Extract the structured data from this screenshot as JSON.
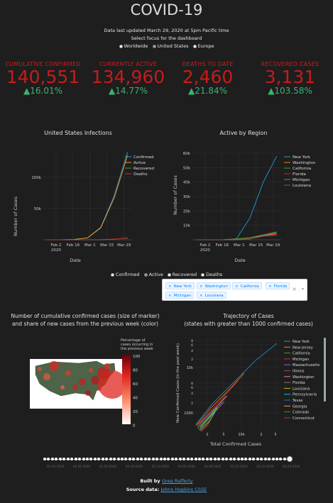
{
  "header": {
    "title": "COVID-19",
    "updated": "Data last updated March 29, 2020 at 5pm Pacific time",
    "focus_label": "Select focus for the dashboard",
    "focus_options": [
      "Worldwide",
      "United States",
      "Europe"
    ],
    "focus_selected": "United States"
  },
  "stats": [
    {
      "label": "CUMULATIVE CONFIRMED",
      "value": "140,551",
      "change": "▲16.01%"
    },
    {
      "label": "CURRENTLY ACTIVE",
      "value": "134,960",
      "change": "▲14.77%"
    },
    {
      "label": "DEATHS TO DATE",
      "value": "2,460",
      "change": "▲21.84%"
    },
    {
      "label": "RECOVERED CASES",
      "value": "3,131",
      "change": "▲103.58%"
    }
  ],
  "colors": {
    "confirmed": "#1f9bd4",
    "active": "#ff9a1f",
    "recovered": "#2ca02c",
    "deaths": "#d62728",
    "stat_red": "#c81a1a",
    "stat_green": "#3cb371"
  },
  "chart_data": [
    {
      "type": "line",
      "title": "United States Infections",
      "xlabel": "Date",
      "ylabel": "Number of Cases",
      "x_ticks": [
        "Feb 2\n2020",
        "Feb 16",
        "Mar 1",
        "Mar 15",
        "Mar 29"
      ],
      "y_ticks": [
        "50k",
        "100k"
      ],
      "ylim": [
        0,
        140551
      ],
      "legend": "top-right",
      "series": [
        {
          "name": "Confirmed",
          "values": [
            0,
            100,
            500,
            3000,
            20000,
            70000,
            140551
          ]
        },
        {
          "name": "Active",
          "values": [
            0,
            90,
            450,
            2800,
            19000,
            67000,
            134960
          ]
        },
        {
          "name": "Recovered",
          "values": [
            0,
            5,
            10,
            20,
            100,
            800,
            3131
          ]
        },
        {
          "name": "Deaths",
          "values": [
            0,
            0,
            5,
            60,
            300,
            1200,
            2460
          ]
        }
      ]
    },
    {
      "type": "line",
      "title": "Active by Region",
      "xlabel": "Date",
      "ylabel": "Number of Cases",
      "x_ticks": [
        "Feb 2\n2020",
        "Feb 16",
        "Mar 1",
        "Mar 15",
        "Mar 29"
      ],
      "y_ticks": [
        "10k",
        "20k",
        "30k",
        "40k",
        "50k",
        "60k"
      ],
      "ylim": [
        0,
        60000
      ],
      "legend": "top-right",
      "series": [
        {
          "name": "New York",
          "values": [
            0,
            0,
            0,
            700,
            15000,
            40000,
            58000
          ]
        },
        {
          "name": "Washington",
          "values": [
            0,
            0,
            10,
            600,
            1500,
            3000,
            4300
          ]
        },
        {
          "name": "California",
          "values": [
            0,
            5,
            20,
            400,
            1500,
            3500,
            5500
          ]
        },
        {
          "name": "Florida",
          "values": [
            0,
            0,
            2,
            100,
            700,
            2500,
            4000
          ]
        },
        {
          "name": "Michigan",
          "values": [
            0,
            0,
            0,
            50,
            600,
            3000,
            5000
          ]
        },
        {
          "name": "Louisiana",
          "values": [
            0,
            0,
            0,
            80,
            800,
            2500,
            3300
          ]
        }
      ]
    },
    {
      "type": "scatter",
      "title": "Trajectory of Cases",
      "subtitle": "(states with greater than 1000 confirmed cases)",
      "xlabel": "Total Confirmed Cases",
      "ylabel": "New Confirmed Cases (in the past week)",
      "log_scale": true,
      "legend": "right",
      "x_ticks": [
        "2",
        "5",
        "10k",
        "2",
        "5"
      ],
      "y_ticks": [
        "1000",
        "2",
        "4",
        "6",
        "8",
        "10k",
        "2",
        "4",
        "6",
        "8"
      ],
      "series": [
        {
          "name": "New York"
        },
        {
          "name": "New Jersey"
        },
        {
          "name": "California"
        },
        {
          "name": "Michigan"
        },
        {
          "name": "Massachusetts"
        },
        {
          "name": "Illinois"
        },
        {
          "name": "Washington"
        },
        {
          "name": "Florida"
        },
        {
          "name": "Louisiana"
        },
        {
          "name": "Pennsylvania"
        },
        {
          "name": "Texas"
        },
        {
          "name": "Georgia"
        },
        {
          "name": "Colorado"
        },
        {
          "name": "Connecticut"
        }
      ]
    }
  ],
  "map": {
    "title_line1": "Number of cumulative confirmed cases (size of marker)",
    "title_line2": "and share of new cases from the previous week (color)",
    "colorbar_title": [
      "Percentage of",
      "cases occurring in",
      "the previous week"
    ],
    "colorbar_ticks": [
      "100",
      "80",
      "60",
      "40",
      "20",
      "0"
    ]
  },
  "selector": {
    "options": [
      "Confirmed",
      "Active",
      "Recovered",
      "Deaths"
    ],
    "selected": "Active",
    "tags": [
      "New York",
      "Washington",
      "California",
      "Florida",
      "Michigan",
      "Louisiana"
    ]
  },
  "timeline": {
    "ticks": [
      "01-26-2020",
      "02-02-2020",
      "02-09-2020",
      "02-16-2020",
      "02-23-2020",
      "03-01-2020",
      "03-08-2020",
      "03-15-2020",
      "03-22-2020",
      "03-29-2020"
    ],
    "value": "03-29-2020"
  },
  "footer": {
    "built_by_label": "Built by",
    "author": "Greg Rafferty",
    "source_label": "Source data:",
    "source": "Johns Hopkins CSSE"
  }
}
